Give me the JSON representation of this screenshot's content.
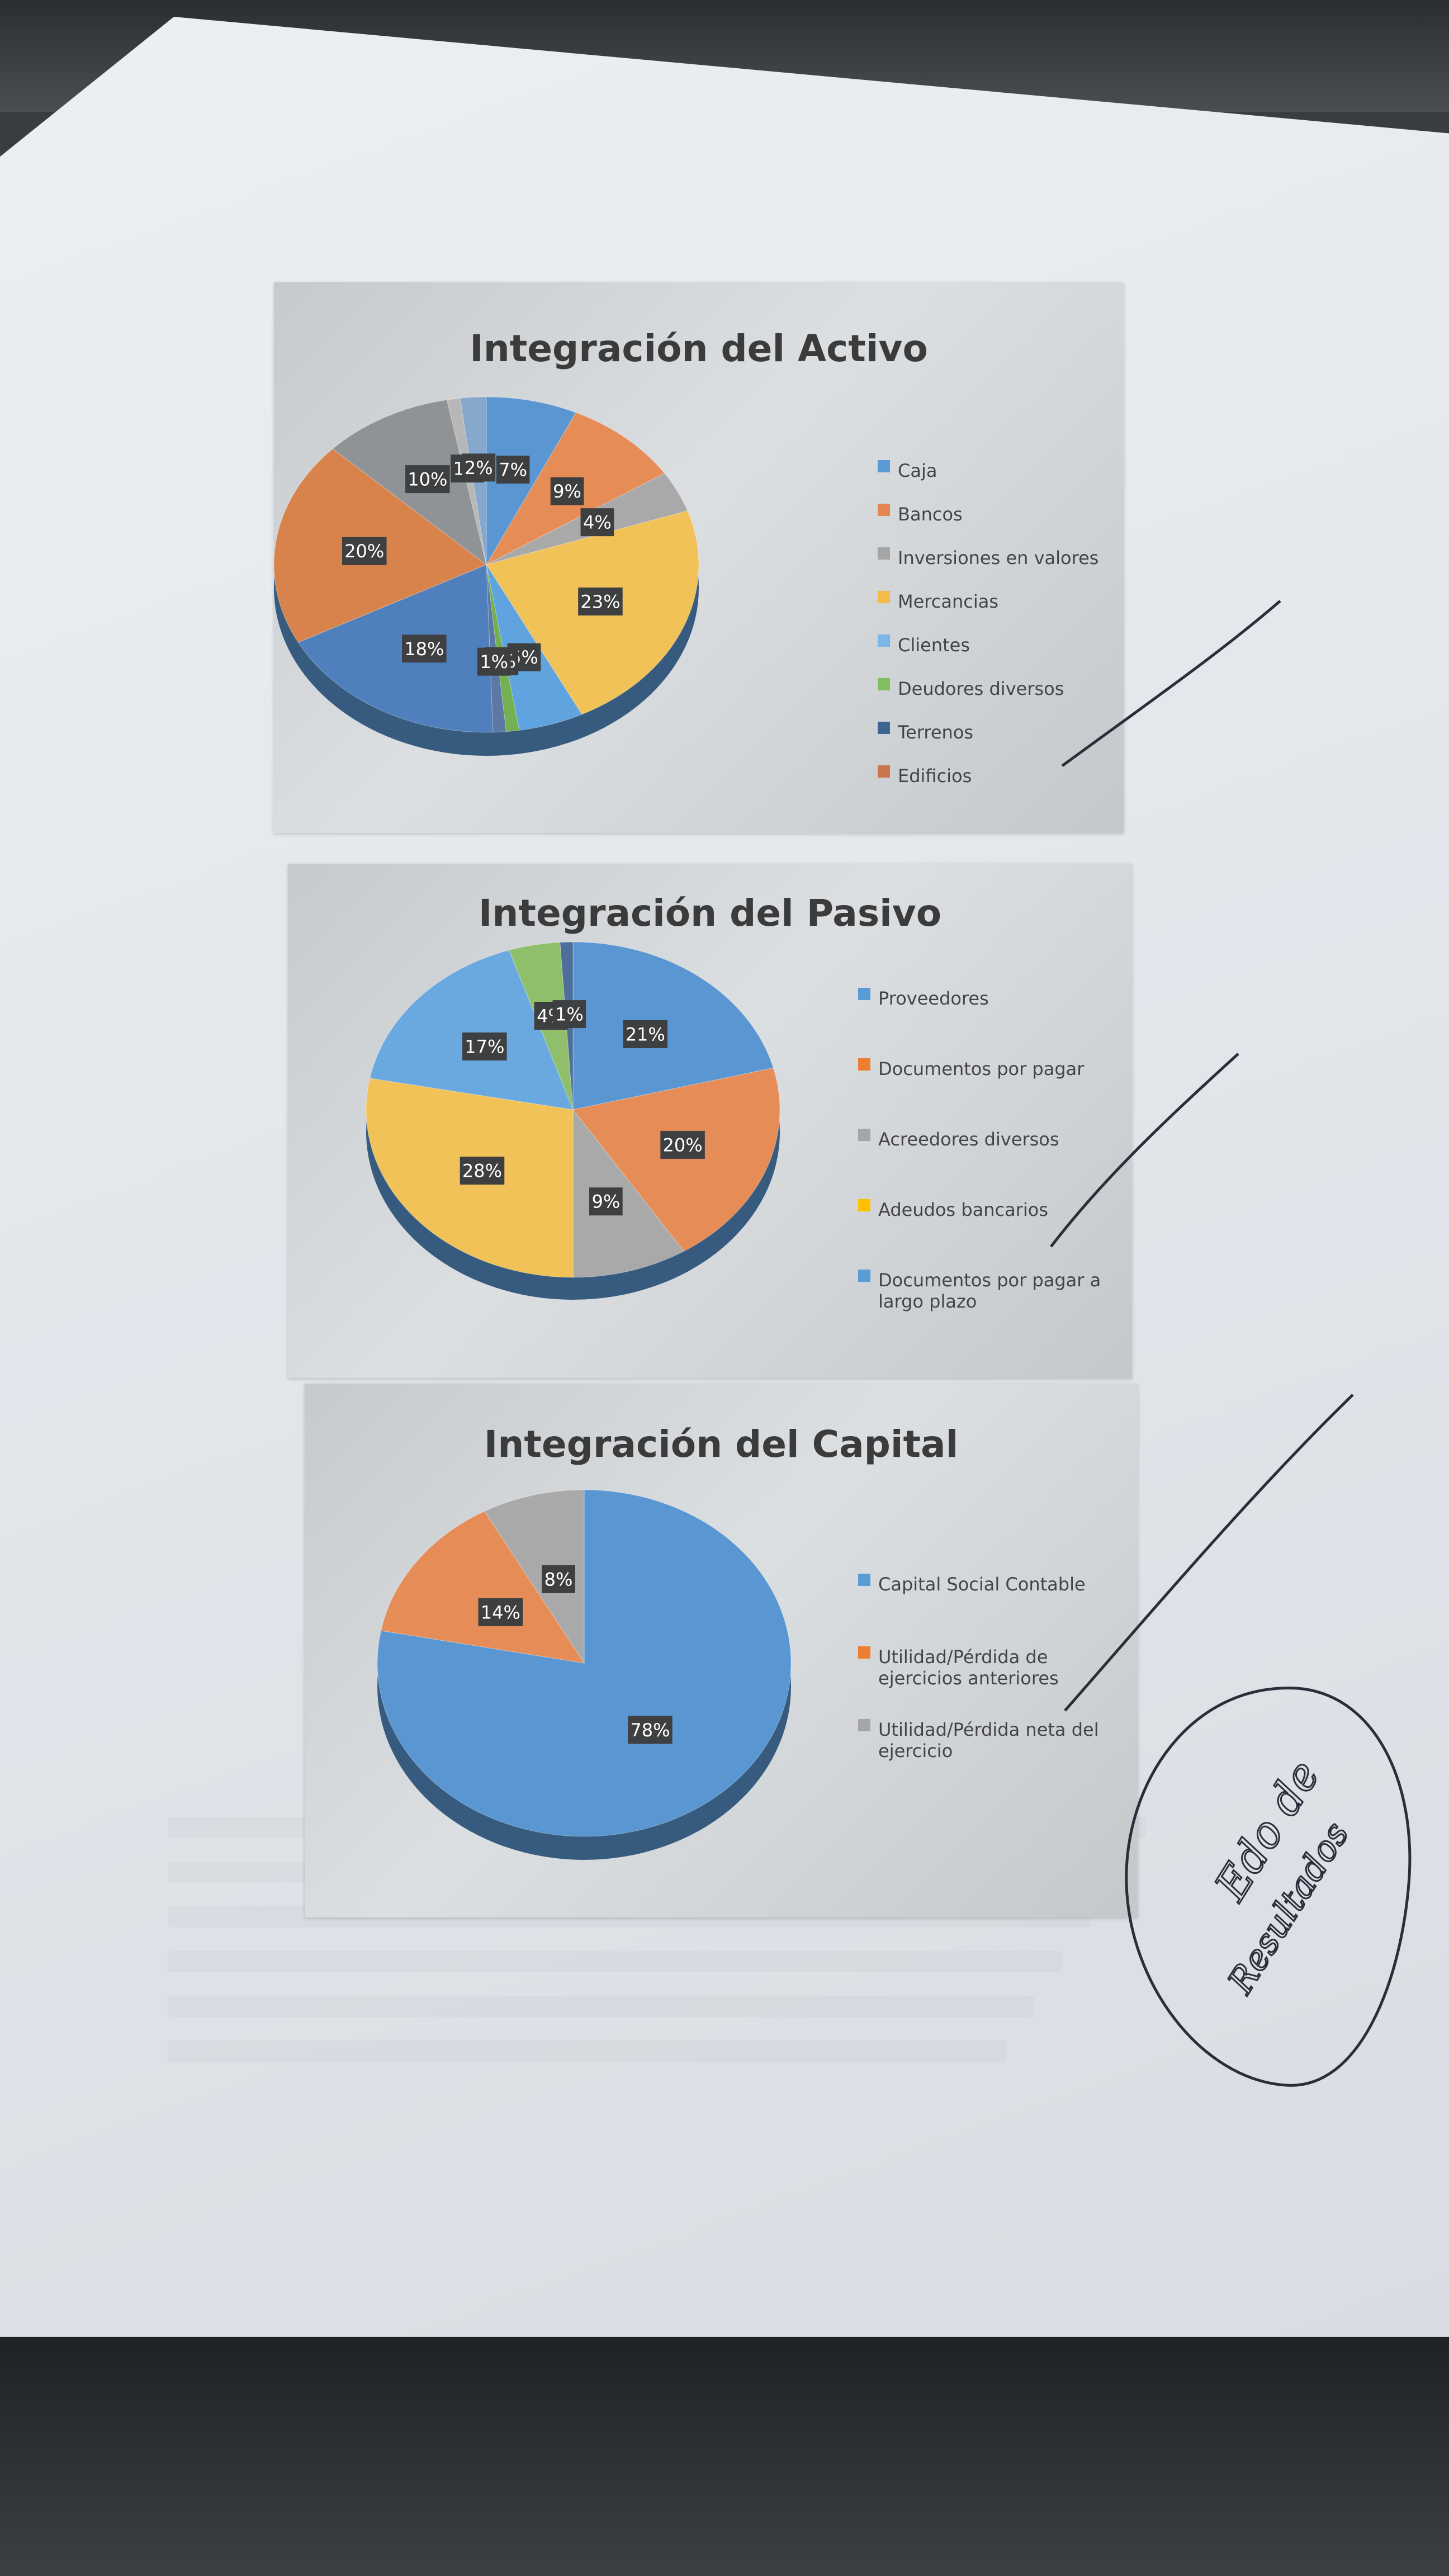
{
  "stamp": {
    "line1": "Edo de",
    "line2": "Resultados"
  },
  "chart_data": [
    {
      "type": "pie",
      "title": "Integración del Activo",
      "categories": [
        "Caja",
        "Bancos",
        "Inversiones en valores",
        "Mercancias",
        "Clientes",
        "Deudores diversos",
        "Terrenos",
        "Edificios"
      ],
      "colors": [
        "#5b9bd5",
        "#ed7d31",
        "#a5a5a5",
        "#ffc000",
        "#5b9bd5",
        "#70ad47",
        "#44546a",
        "#ed7d31"
      ],
      "legend_colors": [
        "#5b9bd5",
        "#e58552",
        "#a5a5a5",
        "#f2bb4a",
        "#7ab6e8",
        "#7fbf60",
        "#3e6591",
        "#c9764c"
      ],
      "slices": [
        {
          "label": "7%",
          "value": 7,
          "color": "#5a97d2"
        },
        {
          "label": "9%",
          "value": 9,
          "color": "#e68c57"
        },
        {
          "label": "4%",
          "value": 4,
          "color": "#a9a9a9"
        },
        {
          "label": "23%",
          "value": 23,
          "color": "#f1c257"
        },
        {
          "label": "5%",
          "value": 5,
          "color": "#5fa3df"
        },
        {
          "label": "1%",
          "value": 1,
          "color": "#74b051"
        },
        {
          "label": "1%",
          "value": 1,
          "color": "#5b79a3"
        },
        {
          "label": "18%",
          "value": 18,
          "color": "#4f80bd"
        },
        {
          "label": "20%",
          "value": 20,
          "color": "#d8834c"
        },
        {
          "label": "10%",
          "value": 10,
          "color": "#8f9396"
        },
        {
          "label": "1%",
          "value": 1,
          "color": "#b7b7b7"
        },
        {
          "label": "2%",
          "value": 2,
          "color": "#86a8cc"
        }
      ],
      "legend_position": "right"
    },
    {
      "type": "pie",
      "title": "Integración del Pasivo",
      "categories": [
        "Proveedores",
        "Documentos por pagar",
        "Acreedores diversos",
        "Adeudos bancarios",
        "Documentos por pagar a largo plazo"
      ],
      "legend_colors": [
        "#5b9bd5",
        "#ed7d31",
        "#a5a5a5",
        "#ffc000",
        "#5b9bd5"
      ],
      "slices": [
        {
          "label": "21%",
          "value": 21,
          "color": "#5a97d2"
        },
        {
          "label": "20%",
          "value": 20,
          "color": "#e68c57"
        },
        {
          "label": "9%",
          "value": 9,
          "color": "#a9a9a9"
        },
        {
          "label": "28%",
          "value": 28,
          "color": "#f1c257"
        },
        {
          "label": "17%",
          "value": 17,
          "color": "#6aa9e0"
        },
        {
          "label": "4%",
          "value": 4,
          "color": "#8fbf6a"
        },
        {
          "label": "1%",
          "value": 1,
          "color": "#4d6f9a"
        }
      ],
      "legend_position": "right"
    },
    {
      "type": "pie",
      "title": "Integración del Capital",
      "categories": [
        "Capital Social Contable",
        "Utilidad/Pérdida de ejercicios anteriores",
        "Utilidad/Pérdida neta del ejercicio"
      ],
      "legend_colors": [
        "#5b9bd5",
        "#ed7d31",
        "#a5a5a5"
      ],
      "slices": [
        {
          "label": "78%",
          "value": 78,
          "color": "#5a97d2"
        },
        {
          "label": "14%",
          "value": 14,
          "color": "#e68c57"
        },
        {
          "label": "8%",
          "value": 8,
          "color": "#a9a9a9"
        }
      ],
      "legend_position": "right"
    }
  ]
}
